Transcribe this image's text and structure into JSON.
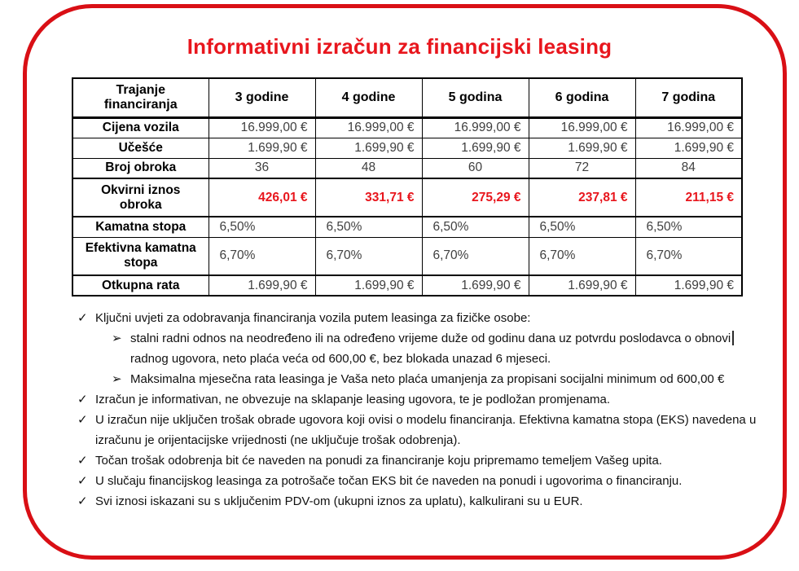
{
  "page": {
    "title": "Informativni izračun za financijski leasing"
  },
  "colors": {
    "accent_red": "#e8161d",
    "frame_red": "#d90f15",
    "value_text": "#3f3f3f"
  },
  "table": {
    "header": [
      "Trajanje financiranja",
      "3 godine",
      "4 godine",
      "5 godina",
      "6 godina",
      "7 godina"
    ],
    "rows": [
      {
        "label": "Cijena vozila",
        "values": [
          "16.999,00 €",
          "16.999,00 €",
          "16.999,00 €",
          "16.999,00 €",
          "16.999,00 €"
        ]
      },
      {
        "label": "Učešće",
        "values": [
          "1.699,90 €",
          "1.699,90 €",
          "1.699,90 €",
          "1.699,90 €",
          "1.699,90 €"
        ]
      },
      {
        "label": "Broj obroka",
        "values": [
          "36",
          "48",
          "60",
          "72",
          "84"
        ]
      },
      {
        "label": "Okvirni iznos obroka",
        "values": [
          "426,01 €",
          "331,71 €",
          "275,29 €",
          "237,81 €",
          "211,15 €"
        ]
      },
      {
        "label": "Kamatna stopa",
        "values": [
          "6,50%",
          "6,50%",
          "6,50%",
          "6,50%",
          "6,50%"
        ]
      },
      {
        "label": "Efektivna kamatna stopa",
        "values": [
          "6,70%",
          "6,70%",
          "6,70%",
          "6,70%",
          "6,70%"
        ]
      },
      {
        "label": "Otkupna rata",
        "values": [
          "1.699,90 €",
          "1.699,90 €",
          "1.699,90 €",
          "1.699,90 €",
          "1.699,90 €"
        ]
      }
    ]
  },
  "notes": {
    "check_marker": "✓",
    "arrow_marker": "➢",
    "items": [
      {
        "text": "Ključni uvjeti za odobravanja financiranja vozila putem leasinga za fizičke osobe:"
      },
      {
        "text": "stalni radni odnos na neodređeno ili na određeno vrijeme duže od godinu dana uz potvrdu poslodavca o obnovi",
        "text2": "radnog ugovora, neto plaća veća od 600,00 €, bez blokada unazad 6 mjeseci."
      },
      {
        "text": "Maksimalna mjesečna rata leasinga je Vaša neto plaća umanjenja za propisani socijalni minimum od 600,00 €"
      },
      {
        "text": "Izračun je informativan, ne obvezuje na sklapanje leasing ugovora, te je podložan promjenama."
      },
      {
        "text": "U izračun nije uključen trošak obrade ugovora koji ovisi o modelu financiranja. Efektivna kamatna stopa (EKS) navedena u izračunu je orijentacijske vrijednosti (ne uključuje trošak odobrenja)."
      },
      {
        "text": "Točan trošak odobrenja bit će naveden na ponudi za financiranje koju pripremamo temeljem Vašeg upita."
      },
      {
        "text": "U slučaju financijskog leasinga za potrošače točan EKS bit će naveden na ponudi i ugovorima o financiranju."
      },
      {
        "text": "Svi iznosi iskazani su s uključenim PDV-om (ukupni iznos za uplatu), kalkulirani su u EUR."
      }
    ]
  }
}
